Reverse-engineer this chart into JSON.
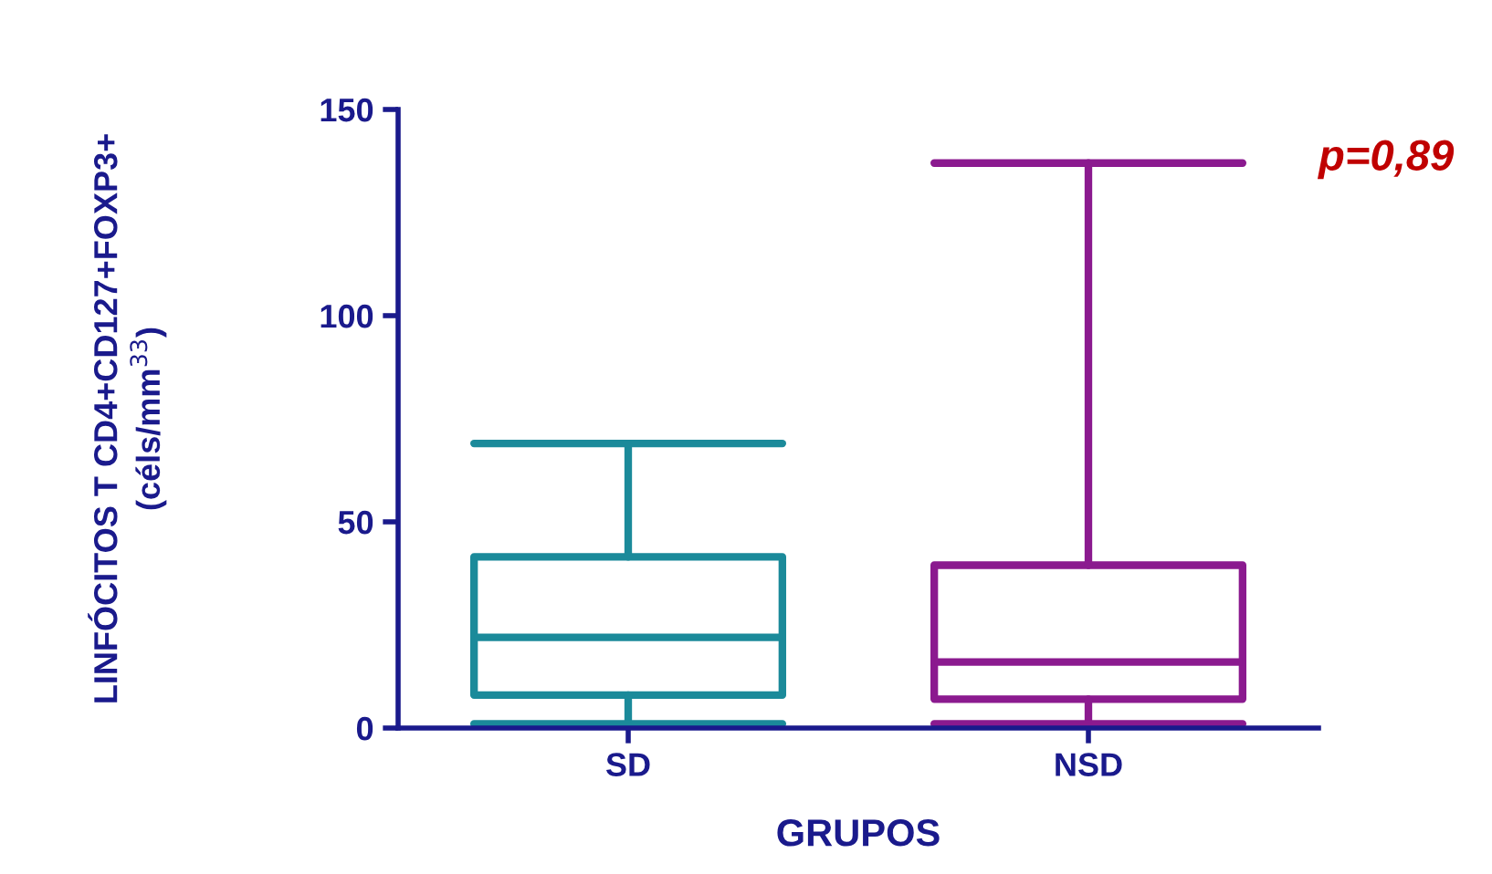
{
  "chart_data": {
    "type": "box",
    "categories": [
      "SD",
      "NSD"
    ],
    "boxes": [
      {
        "low": 1,
        "q1": 8,
        "median": 22,
        "q3": 41.5,
        "high": 69
      },
      {
        "low": 1,
        "q1": 7,
        "median": 16,
        "q3": 39.5,
        "high": 137
      }
    ],
    "colors": [
      "#1b8a9a",
      "#8b1a8f"
    ],
    "xlabel": "GRUPOS",
    "ylabel": "LINFÓCITOS T CD4+CD127+FOXP3+\n(céls/mm$^{33}$)",
    "ylim": [
      0,
      150
    ],
    "yticks": [
      0,
      50,
      100,
      150
    ],
    "annotations": [
      "p=0,89"
    ],
    "grid": false
  }
}
